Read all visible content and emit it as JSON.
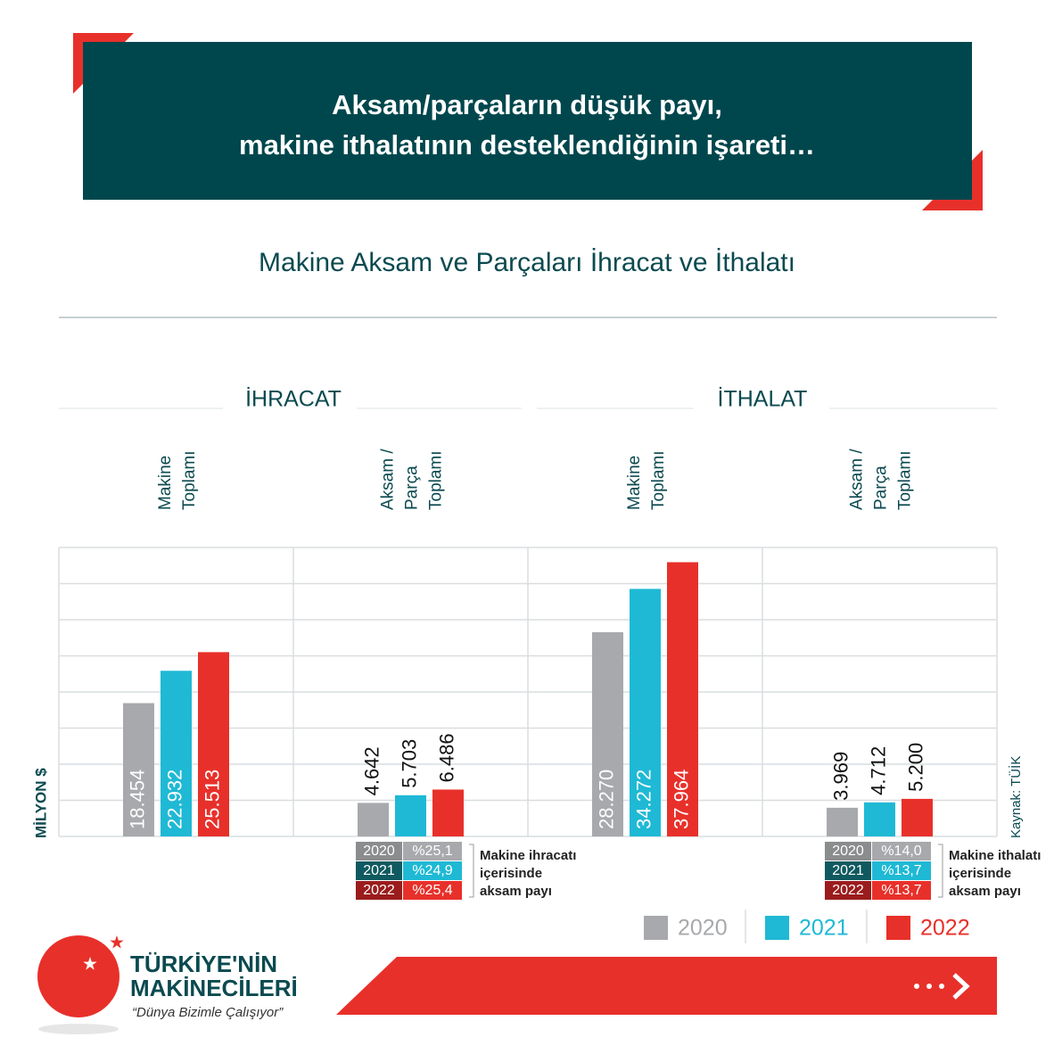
{
  "chart_data": {
    "type": "bar",
    "title": [
      "Aksam/parçaların düşük payı,",
      "makine ithalatının desteklendiğinin işareti…"
    ],
    "subtitle": "Makine Aksam ve Parçaları İhracat ve İthalatı",
    "sections": [
      "İHRACAT",
      "İTHALAT"
    ],
    "categories": [
      [
        "Makine",
        "Toplamı"
      ],
      [
        "Aksam /",
        "Parça",
        "Toplamı"
      ],
      [
        "Makine",
        "Toplamı"
      ],
      [
        "Aksam /",
        "Parça",
        "Toplamı"
      ]
    ],
    "series": [
      {
        "name": "2020",
        "color": "#a7a9ac",
        "values": [
          18454,
          4642,
          28270,
          3969
        ],
        "value_labels": [
          "18.454",
          "4.642",
          "28.270",
          "3.969"
        ]
      },
      {
        "name": "2021",
        "color": "#1fb9d5",
        "values": [
          22932,
          5703,
          34272,
          4712
        ],
        "value_labels": [
          "22.932",
          "5.703",
          "34.272",
          "4.712"
        ]
      },
      {
        "name": "2022",
        "color": "#e8302a",
        "values": [
          25513,
          6486,
          37964,
          5200
        ],
        "value_labels": [
          "25.513",
          "6.486",
          "37.964",
          "5.200"
        ]
      }
    ],
    "ylabel": "MİLYON $",
    "ylim": [
      0,
      40000
    ],
    "yticks": [
      0,
      5000,
      10000,
      15000,
      20000,
      25000,
      30000,
      35000,
      40000
    ],
    "grid": true,
    "source": "Kaynak: TÜİK",
    "shares": [
      {
        "category": 1,
        "label": [
          "Makine ihracatı",
          "içerisinde",
          "aksam payı"
        ],
        "values": [
          25.1,
          24.9,
          25.4
        ],
        "value_labels": [
          "%25,1",
          "%24,9",
          "%25,4"
        ],
        "year_colors": [
          "#8a8c8e",
          "#0f5a60",
          "#9b1c1c"
        ]
      },
      {
        "category": 3,
        "label": [
          "Makine ithalatı",
          "içerisinde",
          "aksam payı"
        ],
        "values": [
          14.0,
          13.7,
          13.7
        ],
        "value_labels": [
          "%14,0",
          "%13,7",
          "%13,7"
        ],
        "year_colors": [
          "#8a8c8e",
          "#0f5a60",
          "#9b1c1c"
        ]
      }
    ]
  },
  "footer": {
    "brand": [
      "TÜRKİYE'NİN",
      "MAKİNECİLERİ"
    ],
    "slogan": "“Dünya Bizimle Çalışıyor”"
  }
}
